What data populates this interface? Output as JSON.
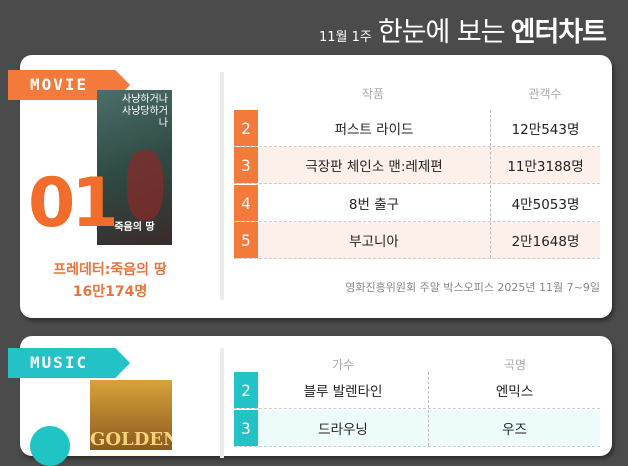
{
  "header": {
    "week": "11월 1주",
    "title_light": "한눈에 보는",
    "title_bold": "엔터차트"
  },
  "movie": {
    "label": "MOVIE",
    "color": "#f26c2b",
    "rank1": "01",
    "top_title": "프레데터:죽음의 땅",
    "top_count": "16만174명",
    "poster_text": "사냥하거나 사냥당하거나",
    "poster_sub": "죽음의 땅",
    "columns": [
      "작품",
      "관객수"
    ],
    "rows": [
      {
        "rank": "2",
        "title": "퍼스트 라이드",
        "count": "12만543명"
      },
      {
        "rank": "3",
        "title": "극장판 체인소 맨:레제편",
        "count": "11만3188명"
      },
      {
        "rank": "4",
        "title": "8번 출구",
        "count": "4만5053명"
      },
      {
        "rank": "5",
        "title": "부고니아",
        "count": "2만1648명"
      }
    ],
    "source": "영화진흥위원회 주말 박스오피스 2025년 11월 7~9일"
  },
  "music": {
    "label": "MUSIC",
    "color": "#1fc4c4",
    "poster_text": "GOLDEN",
    "columns": [
      "가수",
      "곡명"
    ],
    "rows": [
      {
        "rank": "2",
        "a": "블루 발렌타인",
        "b": "엔믹스"
      },
      {
        "rank": "3",
        "a": "드라우닝",
        "b": "우즈"
      }
    ]
  }
}
